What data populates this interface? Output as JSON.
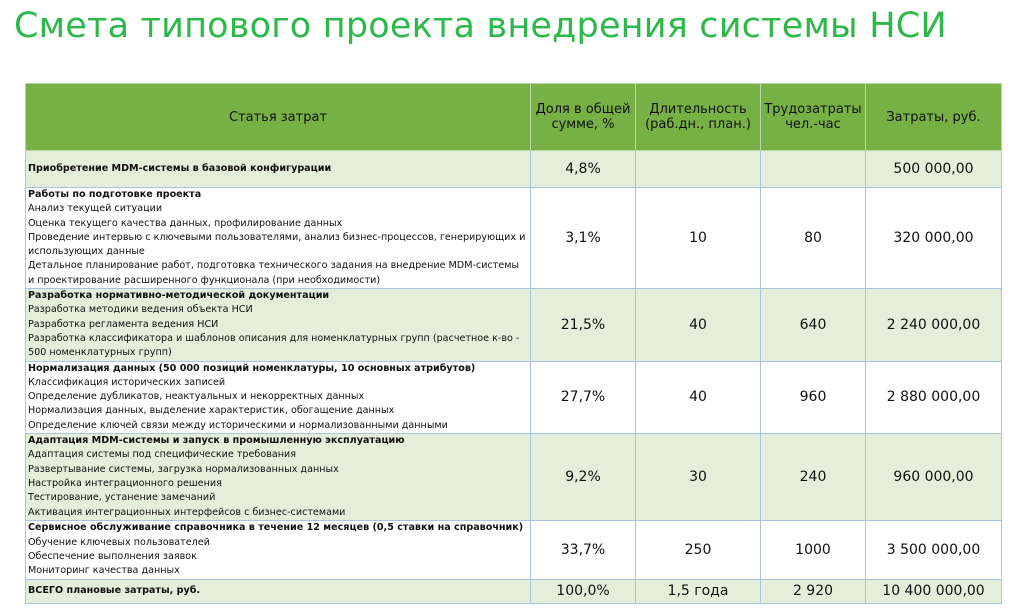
{
  "header": {
    "title": "Смета типового проекта внедрения системы НСИ"
  },
  "table": {
    "columns": [
      "Статья затрат",
      "Доля в общей сумме, %",
      "Длительность (раб.дн., план.)",
      "Трудозатраты чел.-час",
      "Затраты, руб."
    ],
    "rows": [
      {
        "heading": "Приобретение MDM-системы в базовой конфигурации",
        "items": [],
        "cells": [
          "4,8%",
          null,
          null,
          "500 000,00"
        ]
      },
      {
        "heading": "Работы по подготовке проекта",
        "items": [
          "Анализ текущей ситуации",
          "Оценка текущего качества данных, профилирование данных",
          "Проведение интервью с ключевыми пользователями, анализ бизнес-процессов, генерирующих и использующих данные",
          "Детальное планирование работ, подготовка технического задания на внедрение MDM-системы и проектирование расширенного функционала (при необходимости)"
        ],
        "cells": [
          "3,1%",
          "10",
          "80",
          "320 000,00"
        ]
      },
      {
        "heading": "Разработка нормативно-методической документации",
        "items": [
          "Разработка методики ведения объекта НСИ",
          "Разработка регламента ведения НСИ",
          "Разработка классификатора и шаблонов описания для номенклатурных групп (расчетное к-во - 500 номенклатурных групп)"
        ],
        "cells": [
          "21,5%",
          "40",
          "640",
          "2 240 000,00"
        ]
      },
      {
        "heading": "Нормализация данных (50 000 позиций номенклатуры, 10 основных атрибутов)",
        "items": [
          "Классификация исторических записей",
          "Определение дубликатов, неактуальных и некорректных данных",
          "Нормализация данных, выделение характеристик, обогащение данных",
          "Определение ключей связи между историческими и нормализованными данными"
        ],
        "cells": [
          "27,7%",
          "40",
          "960",
          "2 880 000,00"
        ]
      },
      {
        "heading": "Адаптация MDM-системы и запуск в промышленную эксплуатацию",
        "items": [
          "Адаптация системы под специфические требования",
          "Развертывание системы, загрузка нормализованных данных",
          "Настройка интеграционного решения",
          "Тестирование, устанение замечаний",
          "Активация интеграционных интерфейсов с бизнес-системами"
        ],
        "cells": [
          "9,2%",
          "30",
          "240",
          "960 000,00"
        ]
      },
      {
        "heading": "Сервисное обслуживание справочника в течение 12 месяцев (0,5 ставки на справочник)",
        "items": [
          "Обучение ключевых пользователей",
          "Обеспечение выполнения заявок",
          "Мониторинг качества данных"
        ],
        "cells": [
          "33,7%",
          "250",
          "1000",
          "3 500 000,00"
        ]
      },
      {
        "heading": "ВСЕГО плановые затраты, руб.",
        "items": [],
        "cells": [
          "100,0%",
          "1,5 года",
          "2 920",
          "10 400 000,00"
        ]
      }
    ]
  }
}
